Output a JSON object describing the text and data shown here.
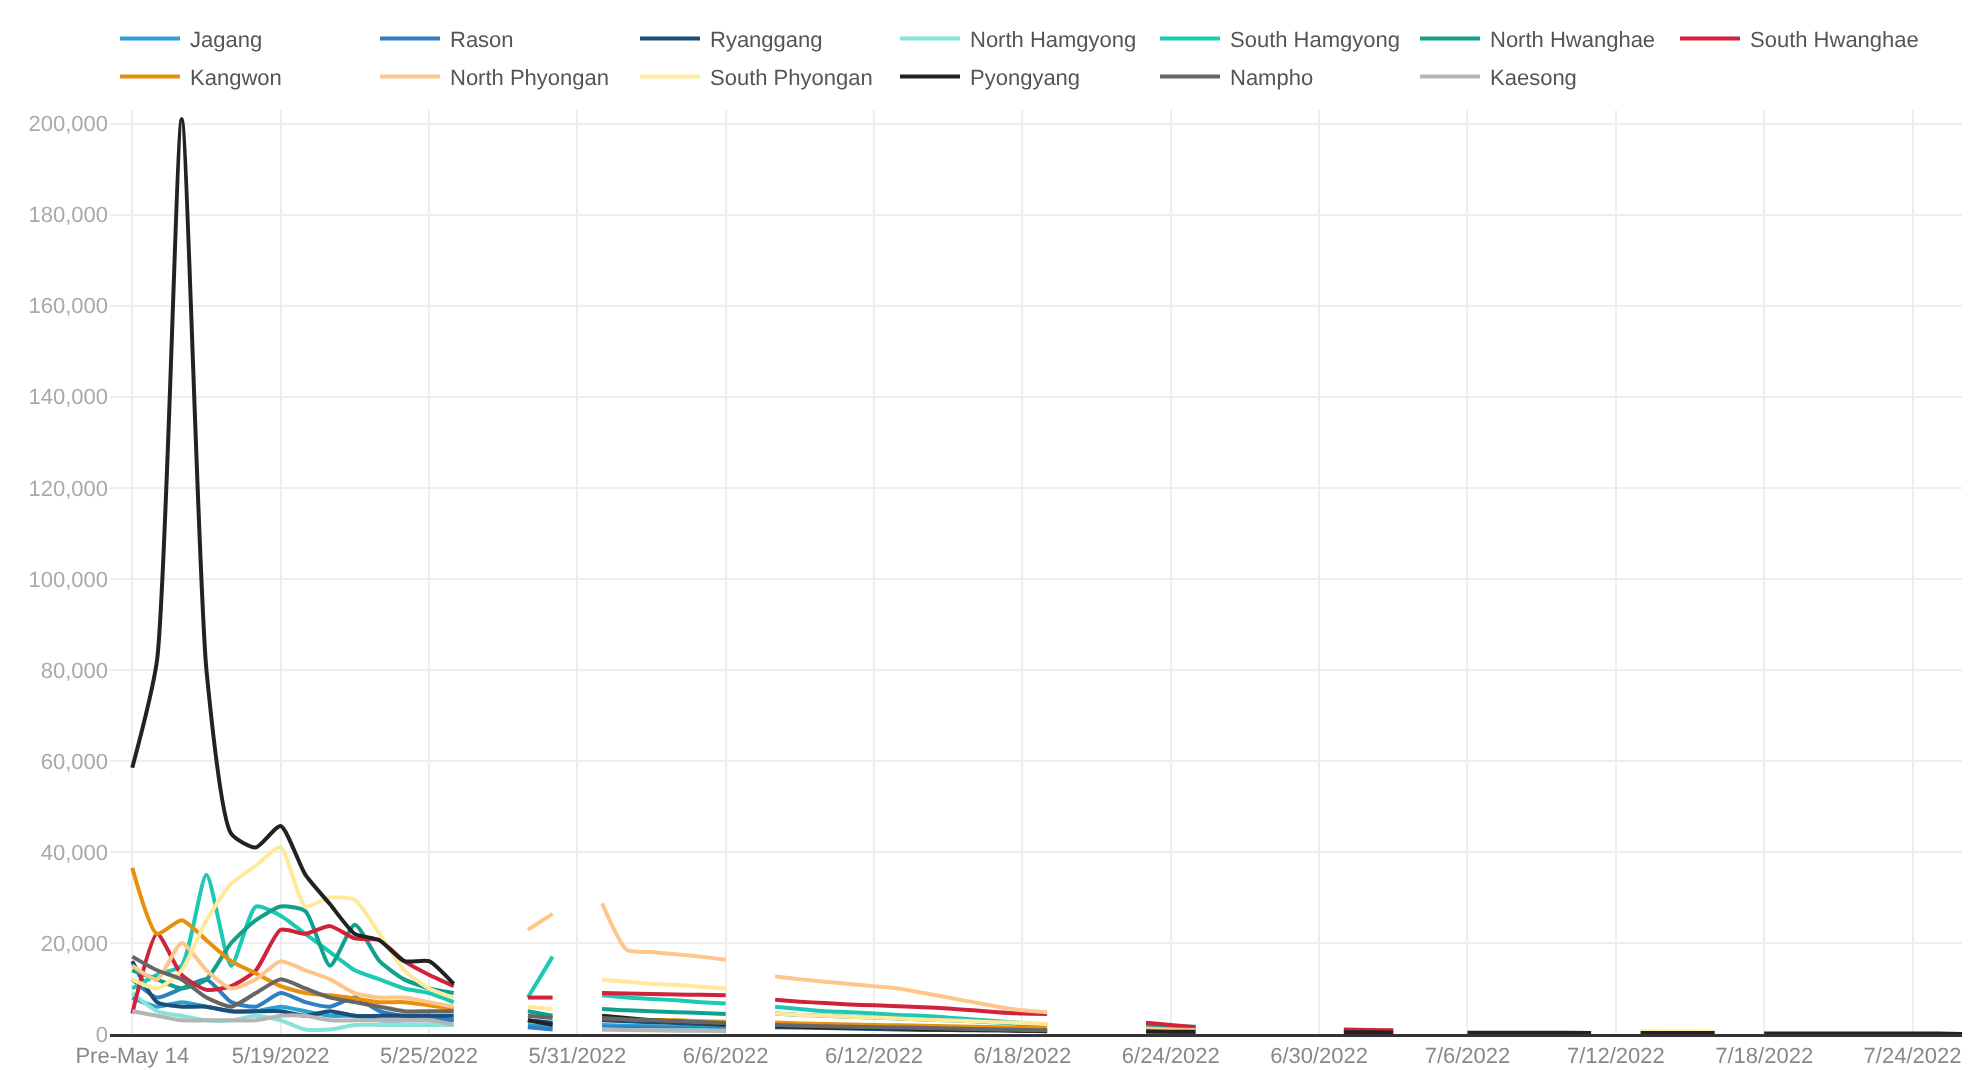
{
  "chart_data": {
    "type": "line",
    "categories": [
      "Pre-May 14",
      null,
      null,
      null,
      null,
      null,
      "5/19/2022",
      null,
      null,
      null,
      null,
      null,
      "5/25/2022",
      null,
      null,
      null,
      null,
      null,
      "5/31/2022",
      null,
      null,
      null,
      null,
      null,
      "6/6/2022",
      null,
      null,
      null,
      null,
      null,
      "6/12/2022",
      null,
      null,
      null,
      null,
      null,
      "6/18/2022",
      null,
      null,
      null,
      null,
      null,
      "6/24/2022",
      null,
      null,
      null,
      null,
      null,
      "6/30/2022",
      null,
      null,
      null,
      null,
      null,
      "7/6/2022",
      null,
      null,
      null,
      null,
      null,
      "7/12/2022",
      null,
      null,
      null,
      null,
      null,
      "7/18/2022",
      null,
      null,
      null,
      null,
      null,
      "7/24/2022",
      null,
      null
    ],
    "ylim": [
      0,
      203000
    ],
    "yticks": [
      0,
      {
        "value": 20000,
        "label": "20,000"
      },
      {
        "value": 40000,
        "label": "40,000"
      },
      {
        "value": 60000,
        "label": "60,000"
      },
      {
        "value": 80000,
        "label": "80,000"
      },
      {
        "value": 100000,
        "label": "100,000"
      },
      {
        "value": 120000,
        "label": "120,000"
      },
      {
        "value": 140000,
        "label": "140,000"
      },
      {
        "value": 160000,
        "label": "160,000"
      },
      {
        "value": 180000,
        "label": "180,000"
      },
      {
        "value": 200000,
        "label": "200,000"
      }
    ],
    "grid": true,
    "legend": "top",
    "line_style": "solid",
    "series": [
      {
        "name": "Jagang",
        "color": "#2aa0d4",
        "values": [
          8000,
          6000,
          7000,
          6000,
          5000,
          5000,
          6000,
          5000,
          4000,
          4000,
          3000,
          3000,
          3000,
          3000,
          null,
          null,
          2000,
          1500,
          null,
          2000,
          1800,
          1700,
          1600,
          1500,
          1400,
          null,
          null,
          null,
          null,
          null,
          null,
          null,
          null,
          null,
          null,
          null,
          null,
          null,
          null,
          null,
          null,
          null,
          null,
          null,
          null,
          null,
          null,
          null,
          null,
          null,
          null,
          null,
          null,
          null,
          null,
          null,
          null,
          null,
          null,
          null,
          null,
          null,
          null,
          null,
          null,
          null,
          null,
          null,
          null,
          null,
          null,
          null,
          null,
          null,
          null
        ]
      },
      {
        "name": "Rason",
        "color": "#2f7fc1",
        "values": [
          12000,
          8000,
          10000,
          12000,
          7000,
          6000,
          9000,
          7000,
          6000,
          8000,
          5000,
          4000,
          4000,
          3000,
          null,
          null,
          1500,
          1000,
          null,
          1500,
          1400,
          1300,
          1200,
          1100,
          1000,
          null,
          null,
          null,
          null,
          null,
          null,
          null,
          null,
          null,
          null,
          null,
          null,
          null,
          null,
          null,
          null,
          null,
          null,
          null,
          null,
          null,
          null,
          null,
          null,
          null,
          null,
          null,
          null,
          null,
          null,
          null,
          null,
          null,
          null,
          null,
          null,
          null,
          null,
          null,
          null,
          null,
          null,
          null,
          null,
          null,
          null,
          null,
          null,
          null,
          null
        ]
      },
      {
        "name": "Ryanggang",
        "color": "#1b4f7a",
        "values": [
          16000,
          7000,
          6000,
          6000,
          5000,
          5000,
          5000,
          4000,
          5000,
          4000,
          4000,
          4000,
          4000,
          4000,
          null,
          null,
          3000,
          2500,
          null,
          3000,
          2800,
          2600,
          2400,
          2200,
          2000,
          null,
          1500,
          1400,
          1300,
          1200,
          1100,
          1000,
          900,
          900,
          800,
          800,
          700,
          700,
          null,
          null,
          null,
          500,
          500,
          500,
          null,
          null,
          null,
          null,
          null,
          null,
          null,
          null,
          null,
          null,
          null,
          null,
          null,
          null,
          null,
          null,
          null,
          null,
          null,
          null,
          null,
          null,
          null,
          null,
          null,
          null,
          null,
          null,
          null,
          null,
          null
        ]
      },
      {
        "name": "North Hamgyong",
        "color": "#86e3d8",
        "values": [
          9000,
          5000,
          4000,
          3000,
          3000,
          4000,
          3000,
          1000,
          1000,
          2000,
          2000,
          2000,
          2000,
          2000,
          null,
          null,
          null,
          null,
          null,
          1000,
          900,
          900,
          800,
          800,
          700,
          null,
          null,
          null,
          null,
          null,
          null,
          null,
          null,
          null,
          null,
          null,
          null,
          null,
          null,
          null,
          null,
          null,
          null,
          null,
          null,
          null,
          null,
          null,
          null,
          null,
          null,
          null,
          null,
          null,
          null,
          null,
          null,
          null,
          null,
          null,
          null,
          null,
          null,
          null,
          null,
          null,
          null,
          null,
          null,
          null,
          null,
          null,
          null,
          null,
          null
        ]
      },
      {
        "name": "South Hamgyong",
        "color": "#1cc9b4",
        "values": [
          10000,
          13000,
          15000,
          35000,
          15000,
          28000,
          26000,
          22000,
          18000,
          14000,
          12000,
          10000,
          9000,
          7000,
          null,
          null,
          8000,
          17000,
          null,
          8500,
          8000,
          7700,
          7400,
          7000,
          6700,
          null,
          6000,
          5500,
          5000,
          4800,
          4500,
          4200,
          4000,
          3600,
          3200,
          2800,
          2400,
          2000,
          null,
          null,
          null,
          1500,
          1400,
          1300,
          null,
          null,
          null,
          null,
          null,
          null,
          null,
          null,
          null,
          null,
          null,
          null,
          null,
          null,
          null,
          null,
          null,
          null,
          null,
          null,
          null,
          null,
          null,
          null,
          null,
          null,
          null,
          null,
          null,
          null,
          null
        ]
      },
      {
        "name": "North Hwanghae",
        "color": "#10a08c",
        "values": [
          14000,
          12000,
          10000,
          12000,
          20000,
          25000,
          28000,
          27000,
          15000,
          24000,
          16000,
          12000,
          10000,
          9000,
          null,
          null,
          5000,
          4000,
          null,
          5500,
          5200,
          5000,
          4800,
          4600,
          4400,
          null,
          4500,
          4200,
          4000,
          3800,
          3600,
          3400,
          3200,
          3000,
          2800,
          2500,
          2200,
          2000,
          null,
          null,
          null,
          1800,
          1700,
          1600,
          null,
          null,
          null,
          null,
          null,
          null,
          null,
          null,
          null,
          null,
          null,
          null,
          null,
          null,
          null,
          null,
          null,
          null,
          null,
          null,
          null,
          null,
          null,
          null,
          null,
          null,
          null,
          null,
          null,
          null,
          null
        ]
      },
      {
        "name": "South Hwanghae",
        "color": "#d0223a",
        "values": [
          4500,
          22000,
          13000,
          9700,
          10500,
          14000,
          22900,
          22000,
          23700,
          21000,
          20600,
          16000,
          13000,
          10500,
          null,
          null,
          8000,
          8000,
          null,
          9000,
          8900,
          8800,
          8700,
          8600,
          8500,
          null,
          7500,
          7100,
          6800,
          6500,
          6300,
          6100,
          5900,
          5600,
          5200,
          4800,
          4500,
          4400,
          null,
          null,
          null,
          2500,
          2000,
          1500,
          null,
          null,
          null,
          null,
          null,
          1000,
          900,
          800,
          null,
          null,
          null,
          null,
          null,
          null,
          null,
          null,
          null,
          null,
          null,
          null,
          null,
          null,
          null,
          null,
          null,
          null,
          null,
          null,
          null,
          null,
          null
        ]
      },
      {
        "name": "Kangwon",
        "color": "#e8900c",
        "values": [
          36500,
          22000,
          25000,
          20600,
          16000,
          13300,
          10500,
          9000,
          8500,
          7800,
          7000,
          7000,
          6300,
          5500,
          null,
          null,
          null,
          null,
          null,
          3500,
          3300,
          3100,
          3000,
          2800,
          2700,
          null,
          2500,
          2300,
          2200,
          2100,
          2000,
          1900,
          1800,
          1700,
          1600,
          1500,
          1400,
          1300,
          null,
          null,
          null,
          1000,
          900,
          800,
          null,
          null,
          null,
          null,
          null,
          null,
          null,
          null,
          null,
          null,
          null,
          null,
          null,
          null,
          null,
          null,
          null,
          null,
          null,
          null,
          null,
          null,
          null,
          null,
          null,
          null,
          null,
          null,
          null,
          null,
          null
        ]
      },
      {
        "name": "North Phyongan",
        "color": "#ffc68a",
        "values": [
          15000,
          12000,
          20000,
          14000,
          10000,
          12000,
          16000,
          14000,
          12000,
          9000,
          8000,
          8000,
          7000,
          6000,
          null,
          null,
          22900,
          26400,
          null,
          28700,
          18500,
          18000,
          17500,
          17000,
          16300,
          null,
          12700,
          12000,
          11500,
          11000,
          10500,
          10000,
          9000,
          8000,
          7000,
          6000,
          5200,
          4800,
          null,
          null,
          null,
          1200,
          1000,
          900,
          null,
          null,
          null,
          null,
          null,
          null,
          null,
          null,
          null,
          null,
          null,
          null,
          null,
          null,
          null,
          null,
          null,
          null,
          null,
          null,
          null,
          null,
          null,
          null,
          null,
          null,
          null,
          null,
          null,
          null,
          null
        ]
      },
      {
        "name": "South Phyongan",
        "color": "#ffe99a",
        "values": [
          12000,
          10000,
          14000,
          25000,
          33000,
          37000,
          41000,
          28000,
          30000,
          29500,
          22000,
          14000,
          10000,
          8000,
          null,
          null,
          6000,
          5500,
          null,
          11900,
          11500,
          11000,
          10800,
          10400,
          10000,
          null,
          4500,
          4200,
          4000,
          3800,
          3600,
          3400,
          3200,
          3000,
          2800,
          2600,
          2400,
          2200,
          null,
          null,
          null,
          null,
          null,
          null,
          null,
          null,
          null,
          null,
          null,
          null,
          null,
          null,
          null,
          null,
          null,
          null,
          null,
          null,
          null,
          null,
          null,
          600,
          500,
          500,
          400,
          null,
          null,
          null,
          null,
          null,
          null,
          null,
          null,
          null,
          null
        ]
      },
      {
        "name": "Pyongyang",
        "color": "#222222",
        "values": [
          58500,
          82000,
          201000,
          80000,
          44000,
          41000,
          45700,
          35000,
          28500,
          22000,
          20600,
          16000,
          16000,
          11000,
          null,
          null,
          3000,
          2000,
          null,
          4000,
          3500,
          3000,
          2800,
          2500,
          2200,
          null,
          1800,
          1600,
          1500,
          1400,
          1300,
          1200,
          1100,
          1000,
          900,
          800,
          700,
          600,
          null,
          null,
          null,
          600,
          500,
          500,
          null,
          null,
          null,
          null,
          null,
          400,
          400,
          300,
          null,
          null,
          300,
          300,
          300,
          300,
          300,
          200,
          null,
          200,
          200,
          200,
          200,
          null,
          100,
          100,
          100,
          100,
          100,
          100,
          100,
          100,
          0
        ]
      },
      {
        "name": "Nampho",
        "color": "#666666",
        "values": [
          17000,
          14000,
          12000,
          8000,
          6000,
          9000,
          12000,
          10000,
          8000,
          7000,
          6000,
          5000,
          5000,
          5000,
          null,
          null,
          4000,
          3500,
          null,
          3500,
          3200,
          3000,
          2800,
          2600,
          2400,
          null,
          2000,
          1800,
          1700,
          1600,
          1500,
          1400,
          1300,
          1200,
          1100,
          1000,
          900,
          800,
          null,
          null,
          null,
          null,
          null,
          null,
          null,
          null,
          null,
          null,
          null,
          null,
          null,
          null,
          null,
          null,
          null,
          null,
          null,
          null,
          null,
          null,
          null,
          null,
          null,
          null,
          null,
          null,
          null,
          null,
          null,
          null,
          null,
          null,
          null,
          null,
          null
        ]
      },
      {
        "name": "Kaesong",
        "color": "#b5b5b5",
        "values": [
          5000,
          4000,
          3000,
          3000,
          3000,
          3000,
          4000,
          4000,
          3000,
          3000,
          3000,
          3000,
          3000,
          2000,
          null,
          null,
          null,
          null,
          null,
          1000,
          900,
          800,
          700,
          700,
          600,
          null,
          null,
          null,
          null,
          null,
          null,
          null,
          null,
          null,
          null,
          null,
          null,
          null,
          null,
          null,
          null,
          null,
          null,
          null,
          null,
          null,
          null,
          null,
          null,
          null,
          null,
          null,
          null,
          null,
          null,
          null,
          null,
          null,
          null,
          null,
          null,
          null,
          null,
          null,
          null,
          null,
          null,
          null,
          null,
          null,
          null,
          null,
          null,
          null,
          null
        ]
      }
    ]
  }
}
